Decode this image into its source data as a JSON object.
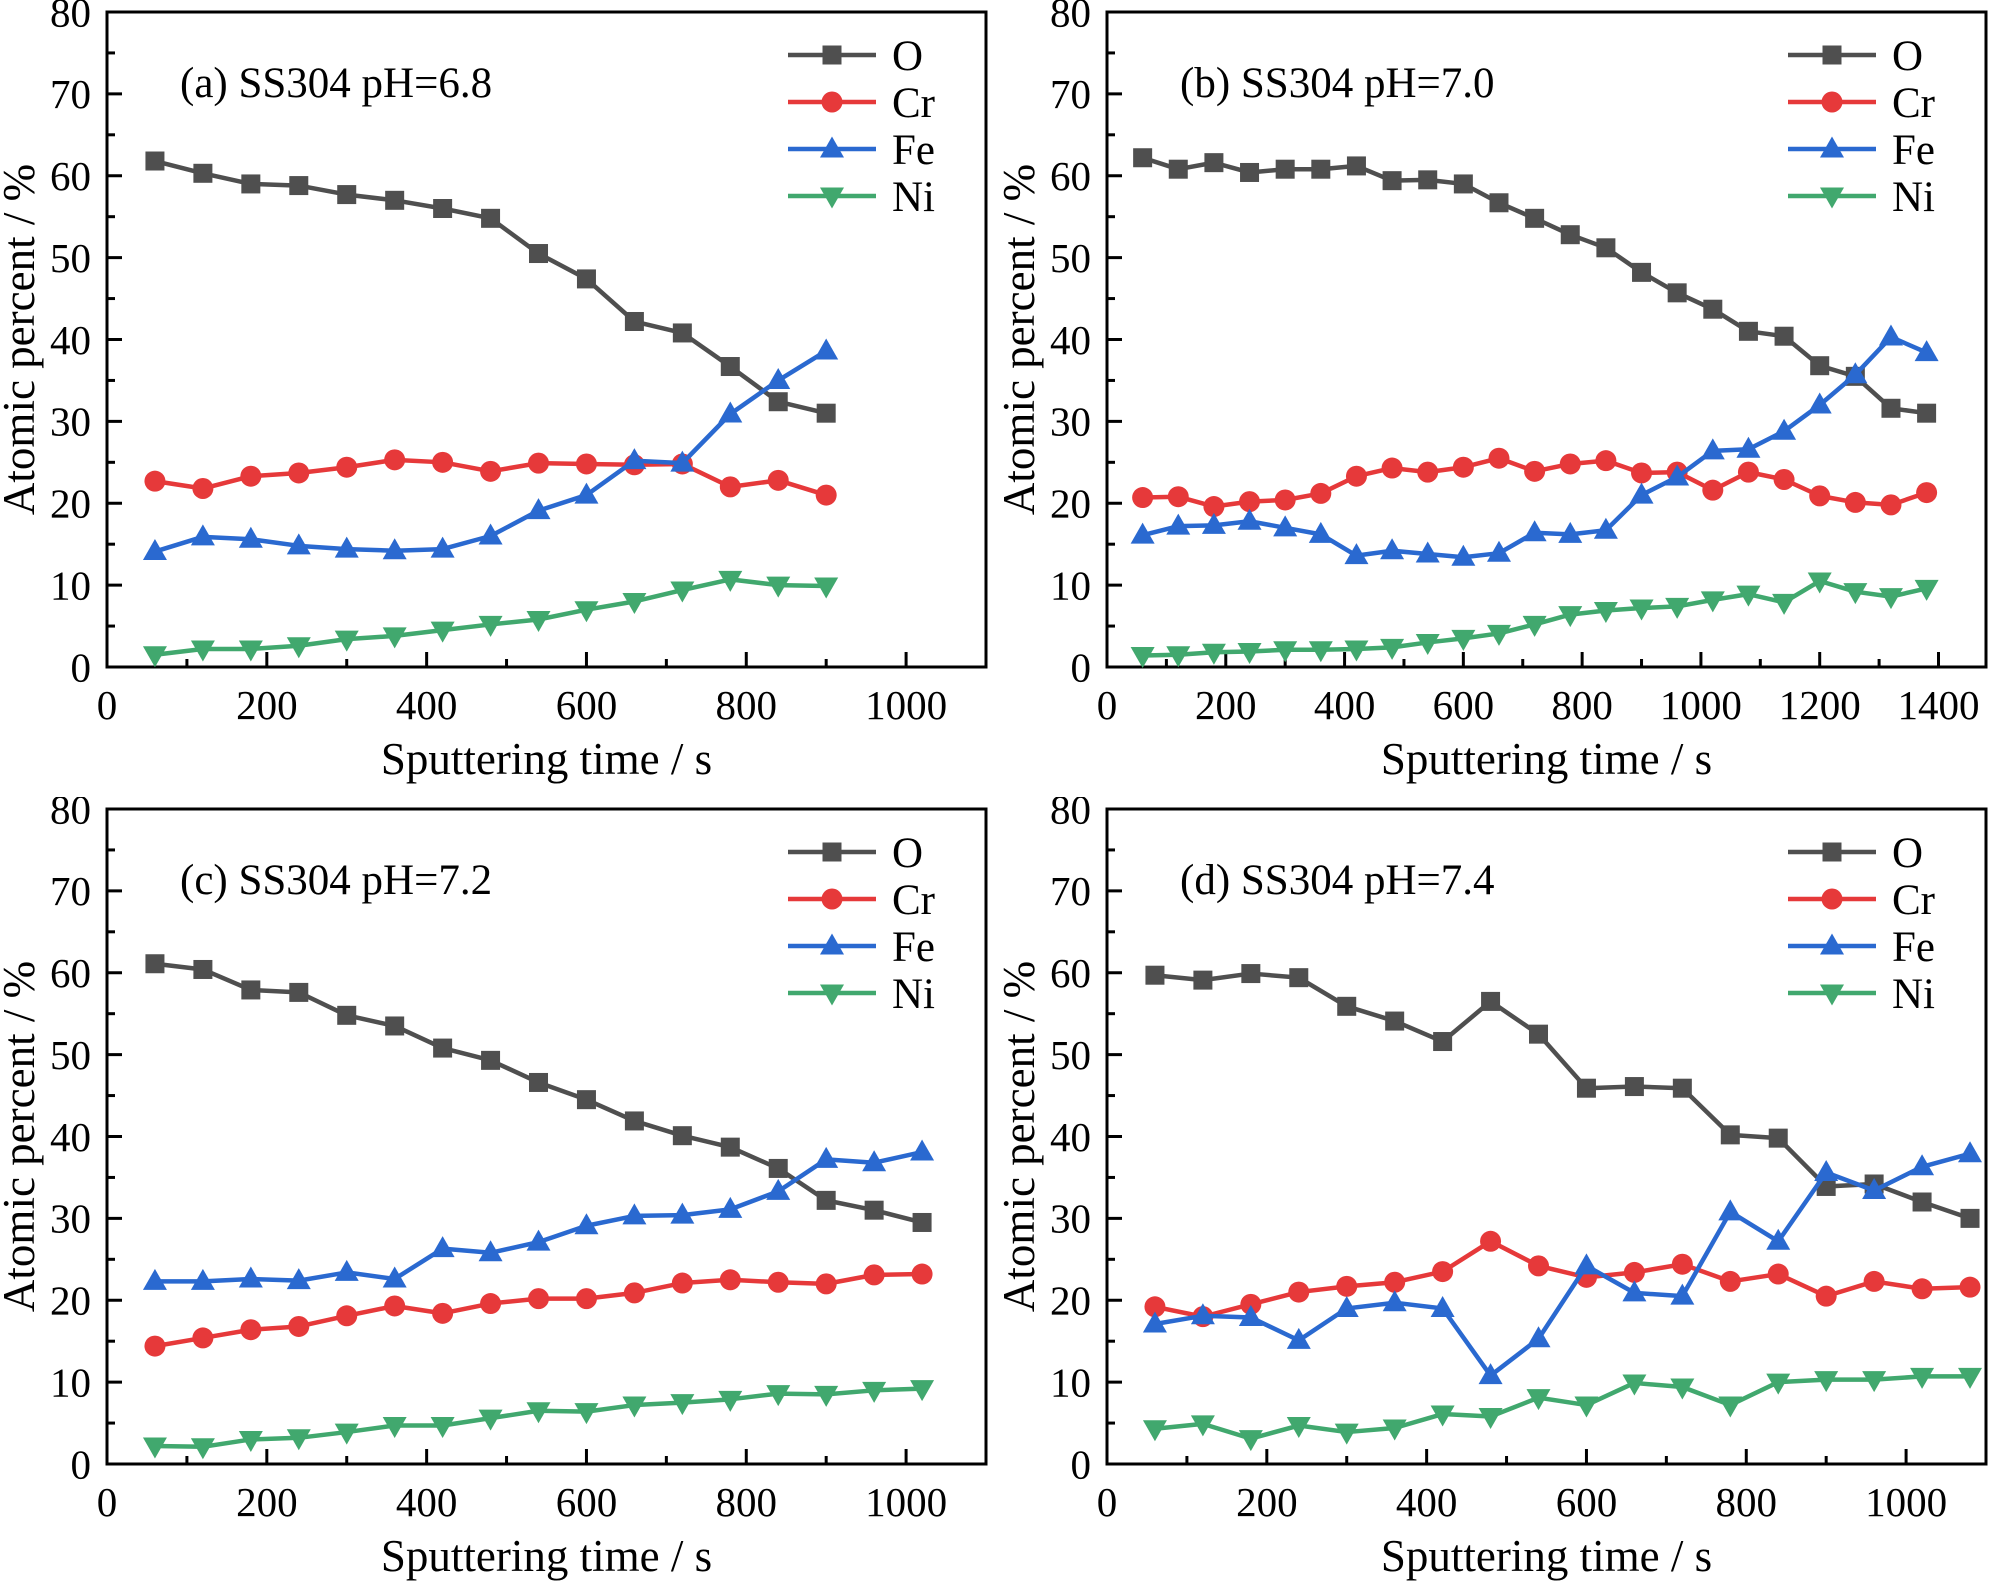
{
  "figure": {
    "background": "#ffffff",
    "axis_color": "#000000",
    "ylabel": "Atomic percent / %",
    "xlabel": "Sputtering time / s",
    "legend_entries": [
      "O",
      "Cr",
      "Fe",
      "Ni"
    ],
    "series_style": {
      "O": {
        "color": "#4f4f4f",
        "marker": "square"
      },
      "Cr": {
        "color": "#e6393a",
        "marker": "circle"
      },
      "Fe": {
        "color": "#2a69d0",
        "marker": "triangle-up"
      },
      "Ni": {
        "color": "#41a86e",
        "marker": "triangle-down"
      }
    }
  },
  "chart_data": [
    {
      "id": "a",
      "type": "line",
      "title": "(a) SS304  pH=6.8",
      "xlabel": "Sputtering time / s",
      "ylabel": "Atomic percent / %",
      "xlim": [
        0,
        1100
      ],
      "ylim": [
        0,
        80
      ],
      "x_major_ticks": [
        0,
        200,
        400,
        600,
        800,
        1000
      ],
      "x_minor_step": 100,
      "y_major_step": 10,
      "y_minor_step": 5,
      "legend_position": "top-right",
      "grid": false,
      "x": [
        60,
        120,
        180,
        240,
        300,
        360,
        420,
        480,
        540,
        600,
        660,
        720,
        780,
        840,
        900
      ],
      "series": [
        {
          "name": "O",
          "values": [
            61.8,
            60.3,
            59.0,
            58.8,
            57.7,
            57.0,
            56.0,
            54.8,
            50.5,
            47.4,
            42.2,
            40.8,
            36.7,
            32.4,
            31.0
          ]
        },
        {
          "name": "Cr",
          "values": [
            22.7,
            21.8,
            23.3,
            23.7,
            24.4,
            25.3,
            25.0,
            23.9,
            24.9,
            24.8,
            24.7,
            24.8,
            22.0,
            22.8,
            21.0
          ]
        },
        {
          "name": "Fe",
          "values": [
            14.1,
            15.9,
            15.6,
            14.8,
            14.4,
            14.2,
            14.4,
            16.0,
            19.1,
            21.0,
            25.2,
            24.9,
            30.9,
            35.0,
            38.6
          ]
        },
        {
          "name": "Ni",
          "values": [
            1.5,
            2.2,
            2.2,
            2.6,
            3.4,
            3.8,
            4.5,
            5.2,
            5.8,
            7.0,
            8.0,
            9.4,
            10.7,
            10.0,
            9.9
          ]
        }
      ]
    },
    {
      "id": "b",
      "type": "line",
      "title": "(b) SS304  pH=7.0",
      "xlabel": "Sputtering time / s",
      "ylabel": "Atomic percent / %",
      "xlim": [
        0,
        1480
      ],
      "ylim": [
        0,
        80
      ],
      "x_major_ticks": [
        0,
        200,
        400,
        600,
        800,
        1000,
        1200,
        1400
      ],
      "x_minor_step": 100,
      "y_major_step": 10,
      "y_minor_step": 5,
      "legend_position": "top-right",
      "grid": false,
      "x": [
        60,
        120,
        180,
        240,
        300,
        360,
        420,
        480,
        540,
        600,
        660,
        720,
        780,
        840,
        900,
        960,
        1020,
        1080,
        1140,
        1200,
        1260,
        1320,
        1380
      ],
      "series": [
        {
          "name": "O",
          "values": [
            62.2,
            60.8,
            61.6,
            60.4,
            60.8,
            60.8,
            61.2,
            59.4,
            59.5,
            59.0,
            56.7,
            54.8,
            52.8,
            51.2,
            48.2,
            45.7,
            43.7,
            41.0,
            40.4,
            36.8,
            35.5,
            31.6,
            31.0
          ]
        },
        {
          "name": "Cr",
          "values": [
            20.7,
            20.8,
            19.6,
            20.2,
            20.4,
            21.2,
            23.3,
            24.3,
            23.8,
            24.4,
            25.5,
            23.9,
            24.8,
            25.2,
            23.7,
            23.8,
            21.6,
            23.8,
            22.9,
            20.9,
            20.1,
            19.8,
            21.3
          ]
        },
        {
          "name": "Fe",
          "values": [
            16.1,
            17.2,
            17.3,
            17.8,
            17.0,
            16.2,
            13.6,
            14.2,
            13.8,
            13.4,
            13.9,
            16.4,
            16.2,
            16.7,
            21.0,
            23.2,
            26.4,
            26.6,
            28.8,
            32.0,
            35.7,
            40.3,
            38.4
          ]
        },
        {
          "name": "Ni",
          "values": [
            1.4,
            1.5,
            1.8,
            1.9,
            2.1,
            2.1,
            2.2,
            2.4,
            3.0,
            3.5,
            4.1,
            5.2,
            6.4,
            6.9,
            7.2,
            7.4,
            8.2,
            8.9,
            7.9,
            10.5,
            9.2,
            8.6,
            9.6
          ]
        }
      ]
    },
    {
      "id": "c",
      "type": "line",
      "title": "(c) SS304  pH=7.2",
      "xlabel": "Sputtering time / s",
      "ylabel": "Atomic percent / %",
      "xlim": [
        0,
        1100
      ],
      "ylim": [
        0,
        80
      ],
      "x_major_ticks": [
        0,
        200,
        400,
        600,
        800,
        1000
      ],
      "x_minor_step": 100,
      "y_major_step": 10,
      "y_minor_step": 5,
      "legend_position": "top-right",
      "grid": false,
      "x": [
        60,
        120,
        180,
        240,
        300,
        360,
        420,
        480,
        540,
        600,
        660,
        720,
        780,
        840,
        900,
        960,
        1020
      ],
      "series": [
        {
          "name": "O",
          "values": [
            61.1,
            60.4,
            57.9,
            57.6,
            54.8,
            53.5,
            50.8,
            49.3,
            46.6,
            44.5,
            41.9,
            40.1,
            38.7,
            36.1,
            32.2,
            31.0,
            29.5
          ]
        },
        {
          "name": "Cr",
          "values": [
            14.4,
            15.4,
            16.4,
            16.8,
            18.1,
            19.3,
            18.4,
            19.6,
            20.2,
            20.2,
            20.9,
            22.1,
            22.5,
            22.2,
            22.0,
            23.1,
            23.2
          ]
        },
        {
          "name": "Fe",
          "values": [
            22.3,
            22.3,
            22.6,
            22.4,
            23.4,
            22.6,
            26.3,
            25.8,
            27.1,
            29.1,
            30.3,
            30.4,
            31.1,
            33.3,
            37.2,
            36.8,
            38.1
          ]
        },
        {
          "name": "Ni",
          "values": [
            2.2,
            2.1,
            3.0,
            3.2,
            3.9,
            4.7,
            4.7,
            5.6,
            6.5,
            6.4,
            7.2,
            7.5,
            7.9,
            8.6,
            8.5,
            9.0,
            9.2
          ]
        }
      ]
    },
    {
      "id": "d",
      "type": "line",
      "title": "(d) SS304  pH=7.4",
      "xlabel": "Sputtering time / s",
      "ylabel": "Atomic percent / %",
      "xlim": [
        0,
        1100
      ],
      "ylim": [
        0,
        80
      ],
      "x_major_ticks": [
        0,
        200,
        400,
        600,
        800,
        1000
      ],
      "x_minor_step": 100,
      "y_major_step": 10,
      "y_minor_step": 5,
      "legend_position": "top-right",
      "grid": false,
      "x": [
        60,
        120,
        180,
        240,
        300,
        360,
        420,
        480,
        540,
        600,
        660,
        720,
        780,
        840,
        900,
        960,
        1020,
        1080
      ],
      "series": [
        {
          "name": "O",
          "values": [
            59.7,
            59.1,
            59.9,
            59.4,
            55.9,
            54.1,
            51.6,
            56.5,
            52.5,
            45.9,
            46.1,
            45.9,
            40.2,
            39.8,
            33.9,
            34.2,
            32.0,
            30.0
          ]
        },
        {
          "name": "Cr",
          "values": [
            19.2,
            18.0,
            19.5,
            21.0,
            21.7,
            22.2,
            23.5,
            27.2,
            24.2,
            22.8,
            23.4,
            24.4,
            22.3,
            23.2,
            20.5,
            22.3,
            21.4,
            21.6
          ]
        },
        {
          "name": "Fe",
          "values": [
            17.1,
            18.1,
            17.9,
            15.1,
            19.0,
            19.7,
            19.0,
            10.8,
            15.3,
            24.2,
            20.9,
            20.5,
            30.8,
            27.2,
            35.6,
            33.4,
            36.3,
            37.9
          ]
        },
        {
          "name": "Ni",
          "values": [
            4.3,
            4.9,
            3.1,
            4.7,
            3.9,
            4.4,
            6.1,
            5.8,
            8.1,
            7.2,
            9.9,
            9.4,
            7.2,
            10.0,
            10.3,
            10.3,
            10.7,
            10.7
          ]
        }
      ]
    }
  ]
}
